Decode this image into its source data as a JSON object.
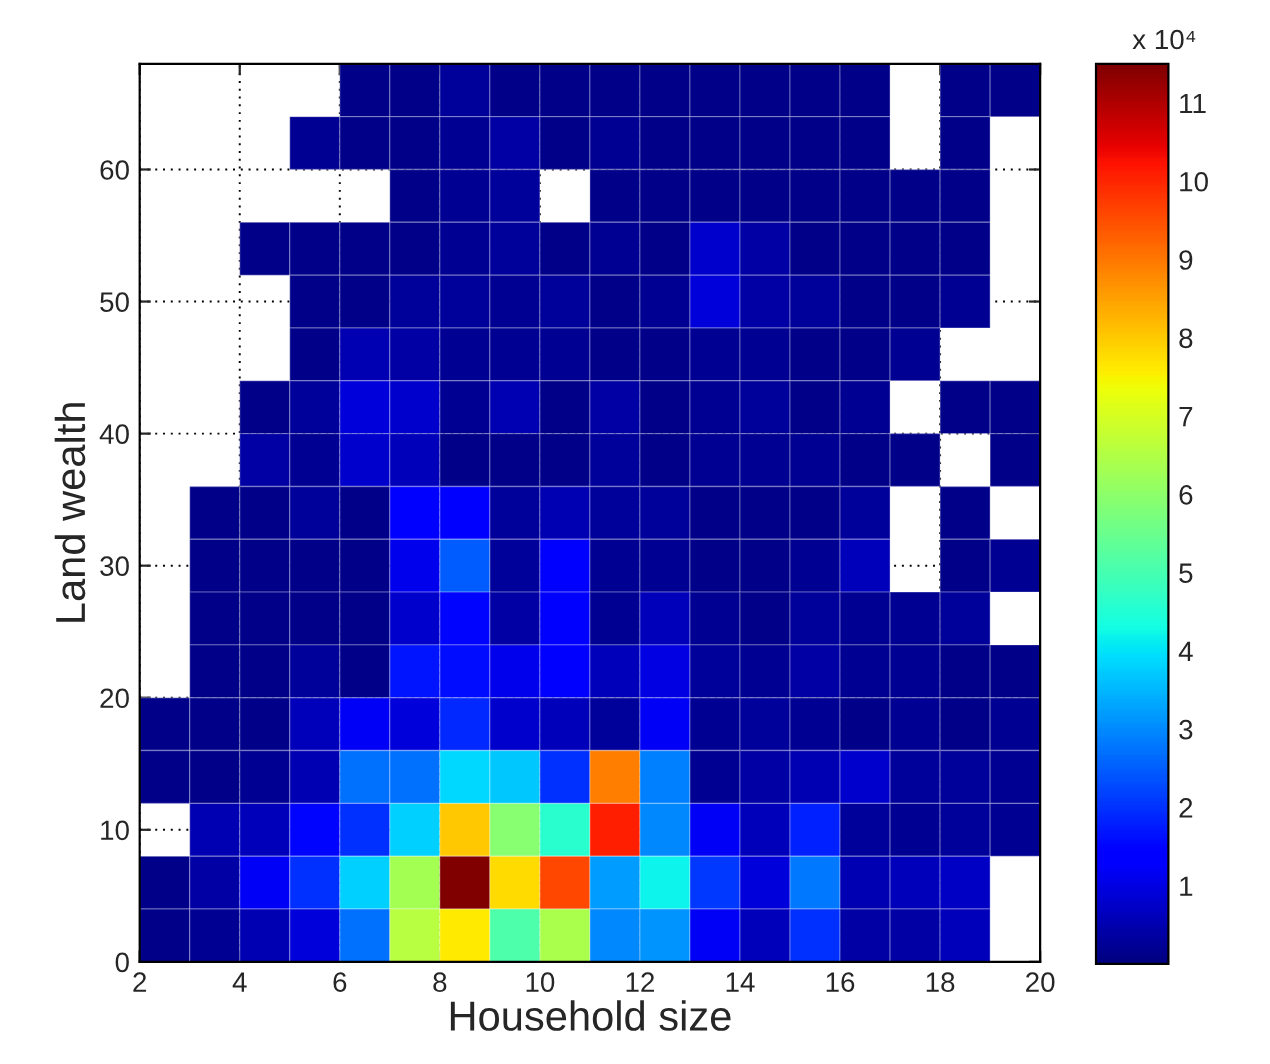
{
  "chart_data": {
    "type": "heatmap",
    "xlabel": "Household size",
    "ylabel": "Land wealth",
    "xlim": [
      2,
      20
    ],
    "xticks": [
      2,
      4,
      6,
      8,
      10,
      12,
      14,
      16,
      18,
      20
    ],
    "ylim": [
      0,
      68
    ],
    "yticks": [
      0,
      10,
      20,
      30,
      40,
      50,
      60
    ],
    "clim": [
      0,
      11.5
    ],
    "cticks": [
      1,
      2,
      3,
      4,
      5,
      6,
      7,
      8,
      9,
      10,
      11
    ],
    "annotations": [
      "x 10⁴"
    ],
    "grid": true,
    "cells": [
      [
        null,
        null,
        null,
        null,
        0.1,
        0.1,
        0.3,
        0.1,
        0.1,
        0.1,
        0.1,
        0.1,
        0.1,
        0.1,
        0.1,
        null,
        0.1,
        0.1
      ],
      [
        null,
        null,
        null,
        0.2,
        0.1,
        0.1,
        0.2,
        0.4,
        0.1,
        0.2,
        0.1,
        0.1,
        0.1,
        0.1,
        0.1,
        null,
        0.1,
        null
      ],
      [
        null,
        null,
        null,
        null,
        null,
        0.1,
        0.2,
        0.3,
        null,
        0.1,
        0.1,
        0.1,
        0.1,
        0.1,
        0.1,
        0.1,
        0.1,
        null
      ],
      [
        null,
        null,
        0.1,
        0.1,
        0.1,
        0.1,
        0.2,
        0.3,
        0.1,
        0.2,
        0.1,
        0.8,
        0.4,
        0.1,
        0.1,
        0.1,
        0.1,
        null
      ],
      [
        null,
        null,
        null,
        0.1,
        0.1,
        0.3,
        0.3,
        0.2,
        0.3,
        0.1,
        0.2,
        0.9,
        0.4,
        0.3,
        0.1,
        0.1,
        0.2,
        null
      ],
      [
        null,
        null,
        null,
        0.1,
        0.5,
        0.4,
        0.2,
        0.2,
        0.2,
        0.1,
        0.1,
        0.2,
        0.2,
        0.1,
        0.1,
        0.2,
        null,
        null
      ],
      [
        null,
        null,
        0.1,
        0.3,
        0.9,
        0.8,
        0.2,
        0.5,
        0.1,
        0.4,
        0.1,
        0.2,
        0.3,
        0.1,
        0.2,
        null,
        0.1,
        0.1
      ],
      [
        null,
        null,
        0.4,
        0.2,
        0.8,
        0.6,
        0.1,
        0.1,
        0.1,
        0.3,
        0.1,
        0.2,
        0.2,
        0.2,
        0.1,
        0.1,
        null,
        0.1
      ],
      [
        null,
        0.1,
        0.1,
        0.3,
        0.1,
        1.3,
        1.4,
        0.3,
        0.5,
        0.3,
        0.3,
        0.1,
        0.1,
        0.1,
        0.3,
        null,
        0.1,
        null
      ],
      [
        null,
        0.1,
        0.1,
        0.1,
        0.1,
        1.1,
        2.5,
        0.3,
        1.4,
        0.2,
        0.2,
        0.1,
        0.1,
        0.2,
        0.6,
        null,
        0.1,
        0.2
      ],
      [
        null,
        0.1,
        0.1,
        0.1,
        0.1,
        0.8,
        1.5,
        0.4,
        1.4,
        0.2,
        0.6,
        0.2,
        0.1,
        0.3,
        0.2,
        0.2,
        0.3,
        null
      ],
      [
        null,
        0.1,
        0.1,
        0.3,
        0.1,
        1.7,
        1.6,
        1.1,
        1.4,
        0.6,
        1.0,
        0.3,
        0.2,
        0.4,
        0.2,
        0.2,
        0.1,
        0.1
      ],
      [
        0.1,
        0.1,
        0.1,
        0.6,
        1.2,
        0.9,
        1.9,
        0.8,
        0.6,
        0.3,
        1.2,
        0.2,
        0.3,
        0.2,
        0.1,
        0.2,
        0.1,
        0.2
      ],
      [
        0.1,
        0.1,
        0.2,
        0.5,
        2.7,
        2.7,
        3.9,
        3.7,
        2.0,
        8.9,
        2.9,
        0.2,
        0.4,
        0.5,
        0.8,
        0.3,
        0.3,
        0.2
      ],
      [
        null,
        0.5,
        0.6,
        1.5,
        2.0,
        3.8,
        8.0,
        5.9,
        4.6,
        10.1,
        3.0,
        1.2,
        0.6,
        1.8,
        0.3,
        0.2,
        0.3,
        0.2
      ],
      [
        0.1,
        0.4,
        1.2,
        2.0,
        3.8,
        6.3,
        11.5,
        7.8,
        9.6,
        3.2,
        4.2,
        2.1,
        0.9,
        2.8,
        0.5,
        0.6,
        0.7,
        null
      ],
      [
        0.1,
        0.2,
        0.5,
        0.9,
        2.7,
        6.6,
        7.6,
        5.1,
        6.4,
        3.0,
        3.1,
        1.2,
        0.6,
        2.0,
        0.4,
        0.4,
        0.6,
        null
      ]
    ]
  }
}
